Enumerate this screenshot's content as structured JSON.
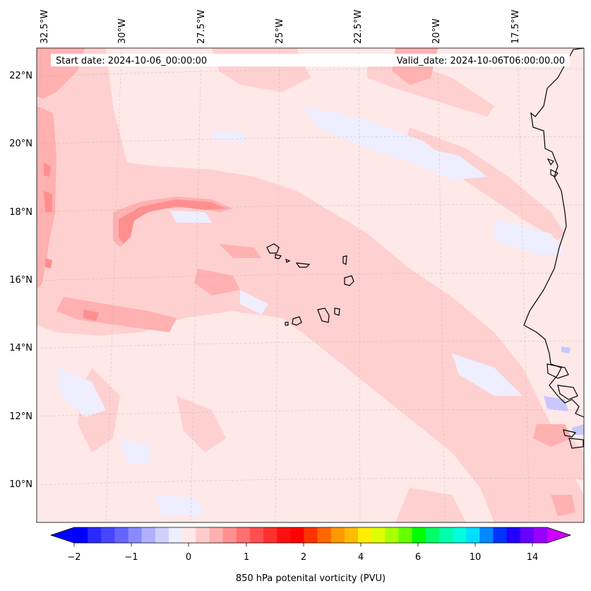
{
  "header": {
    "start_date": "Start date: 2024-10-06_00:00:00",
    "valid_date": "Valid_date: 2024-10-06T06:00:00.00"
  },
  "map": {
    "lon_labels": [
      "32.5°W",
      "30°W",
      "27.5°W",
      "25°W",
      "22.5°W",
      "20°W",
      "17.5°W"
    ],
    "lat_labels": [
      "22°N",
      "20°N",
      "18°N",
      "16°N",
      "14°N",
      "12°N",
      "10°N"
    ],
    "colors": {
      "background": "#ffe8e8",
      "light_pink": "#ffd0d0",
      "medium_pink": "#ffb0b0",
      "strong_pink": "#ff8f8f",
      "light_blue": "#eeeeff",
      "mid_blue": "#c8c8ff",
      "coastline": "#000000"
    }
  },
  "colorbar": {
    "label": "850 hPa potenital vorticity (PVU)",
    "ticks": [
      "−2",
      "−1",
      "0",
      "1",
      "2",
      "4",
      "6",
      "10",
      "14"
    ],
    "colors": [
      "#0000ff",
      "#2a2aff",
      "#4646ff",
      "#6464ff",
      "#8a8aff",
      "#b0b0ff",
      "#d0d0ff",
      "#eeeeff",
      "#ffe8e8",
      "#ffcccc",
      "#ffb0b0",
      "#ff9090",
      "#ff7070",
      "#ff5050",
      "#ff3030",
      "#ff1010",
      "#ff0000",
      "#ff3300",
      "#ff6600",
      "#ff9900",
      "#ffbb00",
      "#ffee00",
      "#ddff00",
      "#aaff00",
      "#66ff00",
      "#00ff00",
      "#00ff66",
      "#00ffaa",
      "#00ffdd",
      "#00ddff",
      "#0088ff",
      "#0033ff",
      "#2200ff",
      "#6600ff",
      "#9900ff"
    ],
    "extend_min_color": "#0000ff",
    "extend_max_color": "#cc00ff"
  }
}
